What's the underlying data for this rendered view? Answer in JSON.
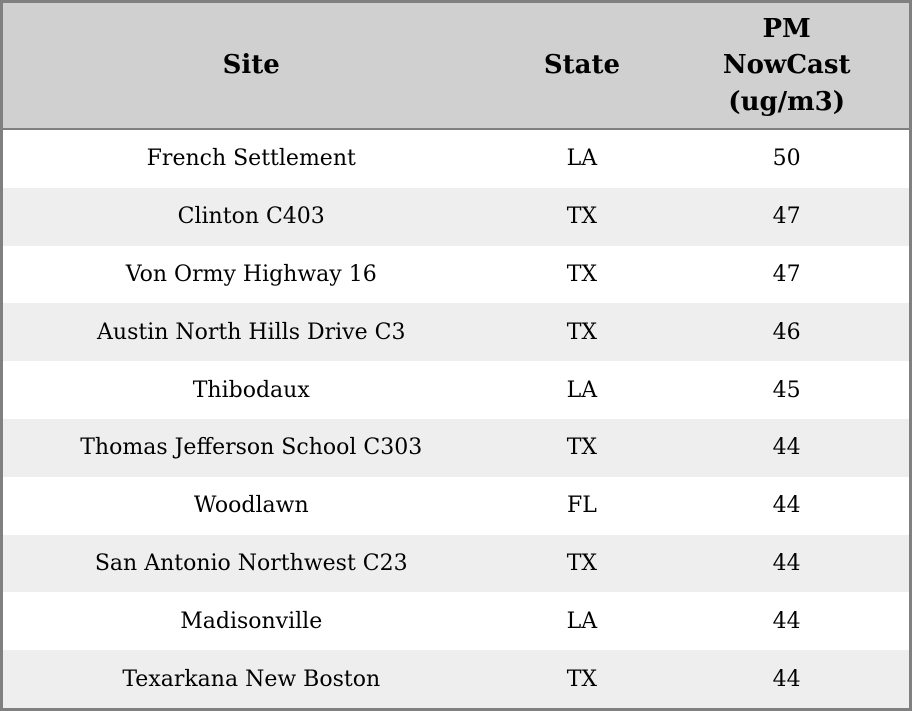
{
  "header_display": {
    "site": "Site",
    "state": "State",
    "pm": "PM\nNowCast\n(ug/m3)"
  },
  "chart_data": {
    "type": "table",
    "title": "",
    "columns": [
      "Site",
      "State",
      "PM NowCast (ug/m3)"
    ],
    "rows": [
      [
        "French Settlement",
        "LA",
        "50"
      ],
      [
        "Clinton C403",
        "TX",
        "47"
      ],
      [
        "Von Ormy Highway 16",
        "TX",
        "47"
      ],
      [
        "Austin North Hills Drive C3",
        "TX",
        "46"
      ],
      [
        "Thibodaux",
        "LA",
        "45"
      ],
      [
        "Thomas Jefferson School C303",
        "TX",
        "44"
      ],
      [
        "Woodlawn",
        "FL",
        "44"
      ],
      [
        "San Antonio Northwest C23",
        "TX",
        "44"
      ],
      [
        "Madisonville",
        "LA",
        "44"
      ],
      [
        "Texarkana New Boston",
        "TX",
        "44"
      ]
    ],
    "layout": {
      "striped": true,
      "stripe_color": "#eeeeee",
      "header_bg": "#d0d0d0",
      "border_color": "#808080",
      "text_color": "#000000"
    }
  }
}
